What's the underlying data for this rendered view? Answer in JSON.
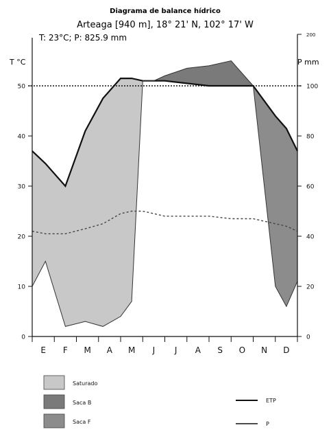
{
  "chart_data": {
    "type": "area",
    "title": "Diagrama de balance hídrico",
    "subtitle": "Arteaga [940 m], 18° 21' N, 102° 17' W",
    "summary": "T: 23°C; P: 825.9 mm",
    "ylabel_left": "T °C",
    "ylabel_right": "P  mm",
    "categories": [
      "E",
      "F",
      "M",
      "A",
      "M",
      "J",
      "J",
      "A",
      "S",
      "O",
      "N",
      "D"
    ],
    "left_ticks": [
      0,
      10,
      20,
      30,
      40,
      50
    ],
    "right_ticks": [
      0,
      20,
      40,
      60,
      80,
      100
    ],
    "right_extra_tick": 200,
    "ylim_left": [
      0,
      50
    ],
    "ylim_right": [
      0,
      100
    ],
    "reference_line_mm": 100,
    "x": [
      0.0,
      0.6,
      1.5,
      2.4,
      3.2,
      4.0,
      4.5,
      5.0,
      5.5,
      6.0,
      7.0,
      8.0,
      9.0,
      10.0,
      11.0,
      11.5,
      12.0
    ],
    "series": [
      {
        "name": "ETP",
        "values_mm": [
          74,
          69,
          60,
          82,
          95,
          103,
          103,
          102,
          102,
          102,
          101,
          100,
          100,
          100,
          88,
          83,
          74
        ]
      },
      {
        "name": "P",
        "values_mm": [
          20,
          30,
          4,
          6,
          4,
          8,
          14,
          102,
          102,
          104,
          107,
          108,
          110,
          100,
          20,
          12,
          22
        ]
      },
      {
        "name": "T",
        "values_mm": [
          42,
          41,
          41,
          43,
          45,
          49,
          50,
          50,
          49,
          48,
          48,
          48,
          47,
          47,
          45,
          44,
          42
        ]
      }
    ],
    "legend": {
      "fills": [
        "Saturado",
        "Saca B",
        "Saca F"
      ],
      "lines": [
        "ETP",
        "P"
      ]
    }
  }
}
